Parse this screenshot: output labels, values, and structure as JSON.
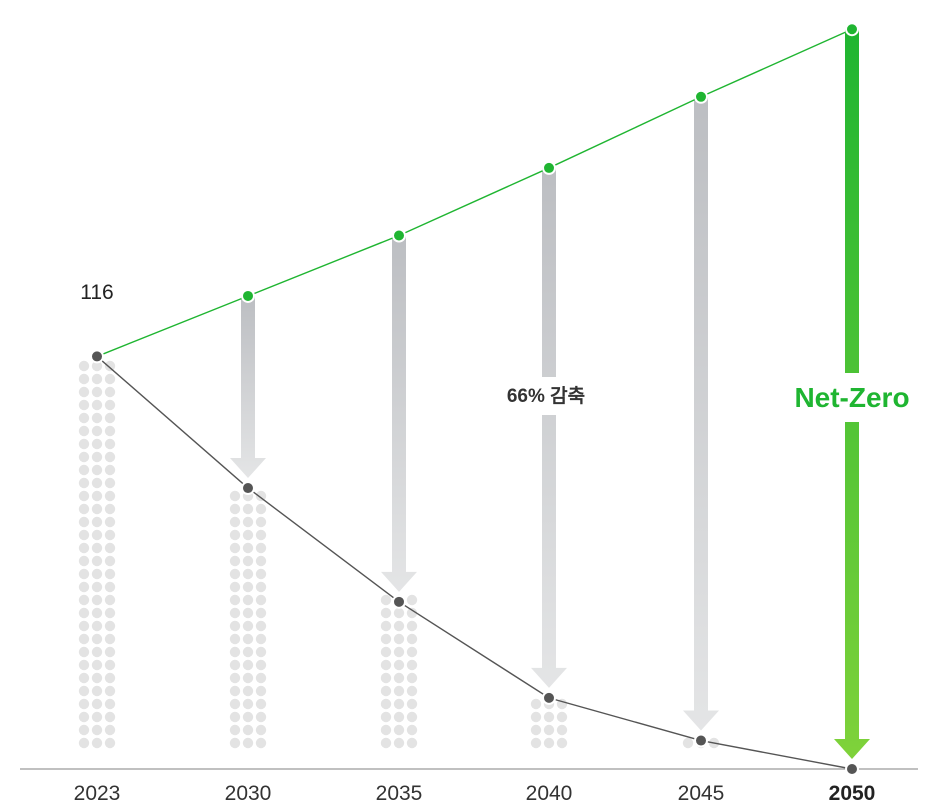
{
  "chart_data": {
    "type": "line",
    "categories": [
      "2023",
      "2030",
      "2035",
      "2040",
      "2045",
      "2050"
    ],
    "emphasized_category": "2050",
    "series": [
      {
        "values": [
          116,
          79,
          47,
          20,
          8,
          0
        ],
        "color": "#555555",
        "marker": "dot",
        "shown_as": "line over dotted columns"
      },
      {
        "values": [
          116,
          133,
          150,
          169,
          189,
          208
        ],
        "color": "#1fb531",
        "marker": "dot",
        "shown_as": "line"
      }
    ],
    "start_value_label": "116",
    "reduction_label": "66% 감축",
    "netzero_label": "Net-Zero",
    "ylim": [
      0,
      212
    ],
    "grid": false,
    "legend": "none",
    "colors": {
      "baseline": "#555555",
      "target": "#1fb531",
      "arrow_gray": "#b9bcc0",
      "dots": "#e3e3e3",
      "netzero_text": "#1fb531",
      "netzero_arrow_top": "#1fb531",
      "netzero_arrow_bottom": "#7fd23a"
    }
  }
}
